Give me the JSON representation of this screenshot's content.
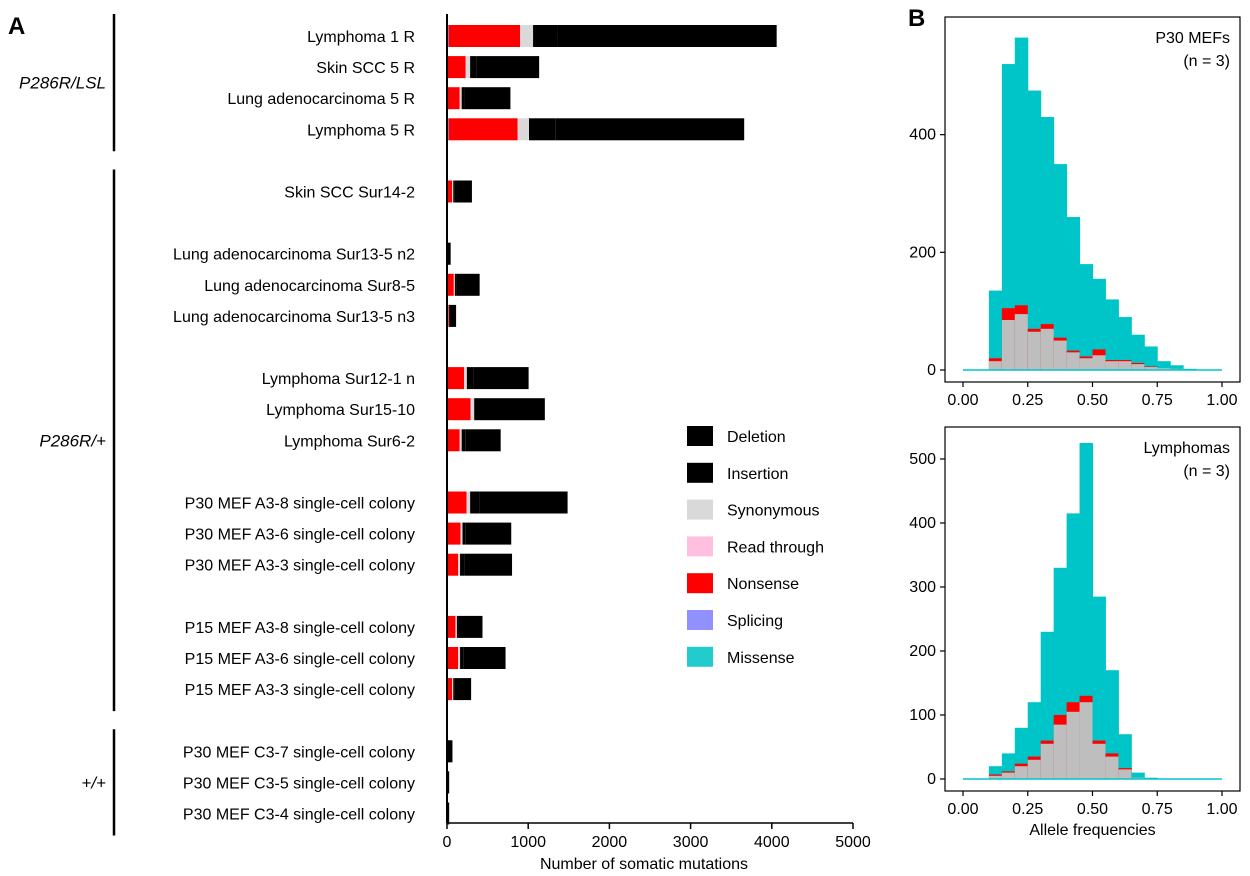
{
  "panels": {
    "a": "A",
    "b": "B"
  },
  "categories": [
    "Deletion",
    "Insertion",
    "Synonymous",
    "Read through",
    "Nonsense",
    "Splicing",
    "Missense"
  ],
  "colors": {
    "Deletion": "#000000",
    "Insertion": "#000000",
    "Synonymous": "#d9d9d9",
    "Read through": "#ffc0e0",
    "Nonsense": "#ff0000",
    "Splicing": "#9090ff",
    "Missense": "#22cccc",
    "hist_syn": "#bebebe",
    "hist_missense": "#00c5c8"
  },
  "genotype_groups": [
    {
      "label": "P286R/LSL",
      "first": 0,
      "last": 3
    },
    {
      "label": "P286R/+",
      "first": 4,
      "last": 16
    },
    {
      "label": "+/+",
      "first": 17,
      "last": 19
    }
  ],
  "chart_data": [
    {
      "type": "bar",
      "orientation": "horizontal",
      "stacked": true,
      "xlabel": "Number of somatic mutations",
      "xlim": [
        0,
        5000
      ],
      "xticks": [
        0,
        1000,
        2000,
        3000,
        4000,
        5000
      ],
      "legend_position": "inside-right",
      "samples": [
        {
          "name": "Lymphoma 1 R",
          "row": 0,
          "values": [
            2700,
            300,
            150,
            10,
            880,
            10,
            10
          ]
        },
        {
          "name": "Skin SCC 5 R",
          "row": 1,
          "values": [
            770,
            80,
            50,
            5,
            220,
            5,
            5
          ]
        },
        {
          "name": "Lung adenocarcinoma 5 R",
          "row": 2,
          "values": [
            560,
            40,
            20,
            5,
            150,
            3,
            3
          ]
        },
        {
          "name": "Lymphoma 5 R",
          "row": 3,
          "values": [
            2320,
            330,
            130,
            10,
            850,
            10,
            10
          ]
        },
        {
          "name": "Skin SCC Sur14-2",
          "row": 5,
          "values": [
            210,
            20,
            10,
            3,
            60,
            2,
            2
          ]
        },
        {
          "name": "Lung adenocarcinoma Sur13-5 n2",
          "row": 7,
          "values": [
            30,
            3,
            2,
            0,
            10,
            0,
            0
          ]
        },
        {
          "name": "Lung adenocarcinoma Sur8-5",
          "row": 8,
          "values": [
            280,
            25,
            10,
            3,
            80,
            2,
            2
          ]
        },
        {
          "name": "Lung adenocarcinoma Sur13-5 n3",
          "row": 9,
          "values": [
            80,
            6,
            3,
            1,
            20,
            1,
            1
          ]
        },
        {
          "name": "Lymphoma Sur12-1 n",
          "row": 11,
          "values": [
            680,
            80,
            30,
            5,
            200,
            5,
            5
          ]
        },
        {
          "name": "Lymphoma Sur15-10",
          "row": 12,
          "values": [
            780,
            90,
            40,
            5,
            280,
            5,
            5
          ]
        },
        {
          "name": "Lymphoma Sur6-2",
          "row": 13,
          "values": [
            430,
            50,
            20,
            5,
            150,
            3,
            3
          ]
        },
        {
          "name": "P30 MEF A3-8 single-cell colony",
          "row": 15,
          "values": [
            1080,
            120,
            40,
            5,
            230,
            5,
            5
          ]
        },
        {
          "name": "P30 MEF A3-6 single-cell colony",
          "row": 16,
          "values": [
            560,
            40,
            20,
            5,
            160,
            3,
            3
          ]
        },
        {
          "name": "P30 MEF A3-3 single-cell colony",
          "row": 17,
          "values": [
            590,
            50,
            20,
            5,
            130,
            3,
            3
          ]
        },
        {
          "name": "P15 MEF A3-8 single-cell colony",
          "row": 19,
          "values": [
            290,
            25,
            15,
            3,
            100,
            2,
            2
          ]
        },
        {
          "name": "P15 MEF A3-6 single-cell colony",
          "row": 20,
          "values": [
            520,
            40,
            20,
            5,
            130,
            3,
            3
          ]
        },
        {
          "name": "P15 MEF A3-3 single-cell colony",
          "row": 21,
          "values": [
            200,
            20,
            10,
            3,
            60,
            2,
            2
          ]
        },
        {
          "name": "P30 MEF C3-7 single-cell colony",
          "row": 23,
          "values": [
            50,
            5,
            2,
            0,
            10,
            0,
            0
          ]
        },
        {
          "name": "P30 MEF C3-5 single-cell colony",
          "row": 24,
          "values": [
            15,
            2,
            0,
            0,
            5,
            0,
            0
          ]
        },
        {
          "name": "P30 MEF C3-4 single-cell colony",
          "row": 25,
          "values": [
            10,
            2,
            1,
            0,
            4,
            0,
            0
          ]
        }
      ]
    },
    {
      "type": "area",
      "title": "P30 MEFs",
      "n_label": "(n = 3)",
      "xlim": [
        0,
        1
      ],
      "xticks": [
        "0.00",
        "0.25",
        "0.50",
        "0.75",
        "1.00"
      ],
      "ylim": [
        0,
        600
      ],
      "yticks": [
        0,
        200,
        400
      ],
      "bin_width": 0.05,
      "bins_start": 0.1,
      "counts": [
        135,
        520,
        565,
        475,
        430,
        350,
        260,
        180,
        155,
        120,
        90,
        60,
        40,
        15,
        8,
        2
      ],
      "synonymous": [
        15,
        85,
        95,
        65,
        70,
        50,
        30,
        20,
        25,
        15,
        15,
        10,
        5,
        3,
        2,
        0
      ],
      "nonsense": [
        5,
        20,
        15,
        5,
        8,
        5,
        3,
        3,
        10,
        2,
        2,
        2,
        1,
        0,
        0,
        0
      ]
    },
    {
      "type": "area",
      "title": "Lymphomas",
      "n_label": "(n = 3)",
      "xlabel": "Allele frequencies",
      "xlim": [
        0,
        1
      ],
      "xticks": [
        "0.00",
        "0.25",
        "0.50",
        "0.75",
        "1.00"
      ],
      "ylim": [
        0,
        550
      ],
      "yticks": [
        0,
        100,
        200,
        300,
        400,
        500
      ],
      "bin_width": 0.05,
      "bins_start": 0.1,
      "counts": [
        20,
        40,
        80,
        120,
        230,
        330,
        415,
        525,
        285,
        170,
        70,
        10,
        2,
        0
      ],
      "synonymous": [
        5,
        10,
        20,
        30,
        55,
        85,
        105,
        120,
        55,
        35,
        15,
        2,
        0,
        0
      ],
      "nonsense": [
        2,
        2,
        4,
        5,
        5,
        15,
        15,
        10,
        5,
        5,
        2,
        0,
        0,
        0
      ]
    }
  ]
}
